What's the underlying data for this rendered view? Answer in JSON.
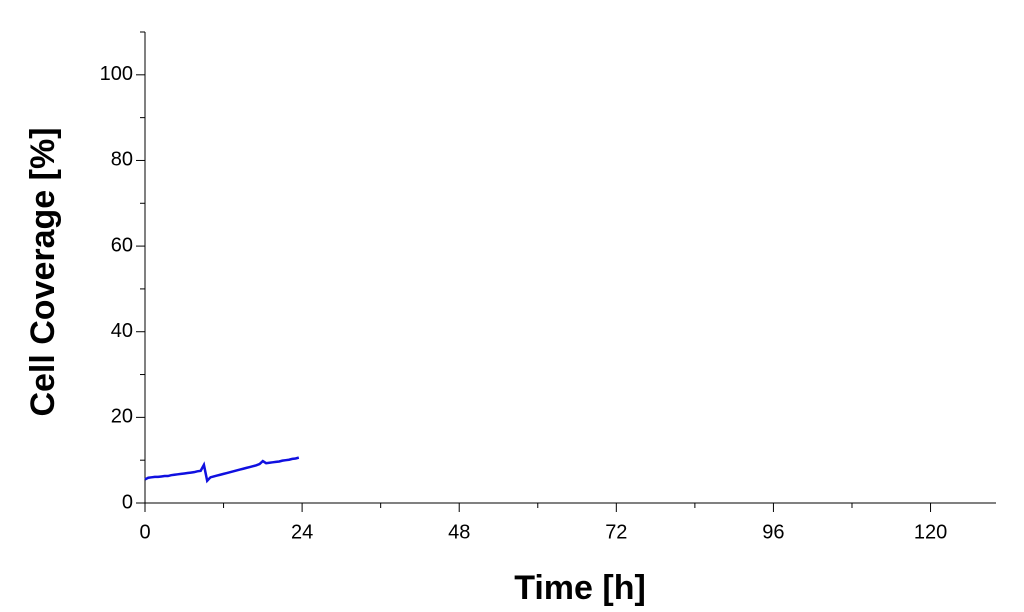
{
  "chart_data": {
    "type": "line",
    "xlabel": "Time [h]",
    "ylabel": "Cell Coverage [%]",
    "x": [
      0,
      0.5,
      1,
      1.5,
      2,
      2.5,
      3,
      3.5,
      4,
      4.5,
      5,
      5.5,
      6,
      6.5,
      7,
      7.5,
      8,
      8.5,
      9,
      9.5,
      10,
      10.5,
      11,
      11.5,
      12,
      12.5,
      13,
      13.5,
      14,
      14.5,
      15,
      15.5,
      16,
      16.5,
      17,
      17.5,
      18,
      18.5,
      19,
      19.5,
      20,
      20.5,
      21,
      21.5,
      22,
      22.5,
      23,
      23.5
    ],
    "values": [
      5.5,
      5.9,
      6.0,
      6.1,
      6.1,
      6.2,
      6.3,
      6.3,
      6.5,
      6.6,
      6.7,
      6.8,
      6.9,
      7.0,
      7.1,
      7.2,
      7.4,
      7.5,
      8.9,
      5.2,
      6.0,
      6.2,
      6.4,
      6.6,
      6.8,
      7.0,
      7.2,
      7.4,
      7.6,
      7.8,
      8.0,
      8.2,
      8.4,
      8.6,
      8.8,
      9.1,
      9.8,
      9.3,
      9.4,
      9.5,
      9.6,
      9.7,
      9.9,
      10.0,
      10.1,
      10.3,
      10.4,
      10.6
    ],
    "color": "#1010e0",
    "xlim": [
      0,
      130
    ],
    "ylim": [
      0,
      110
    ],
    "xticks": [
      0,
      24,
      48,
      72,
      96,
      120
    ],
    "yticks": [
      0,
      20,
      40,
      60,
      80,
      100
    ],
    "xminor_ticks": [
      12,
      36,
      60,
      84,
      108
    ],
    "yminor_ticks": [
      10,
      30,
      50,
      70,
      90,
      110
    ],
    "grid": false
  }
}
